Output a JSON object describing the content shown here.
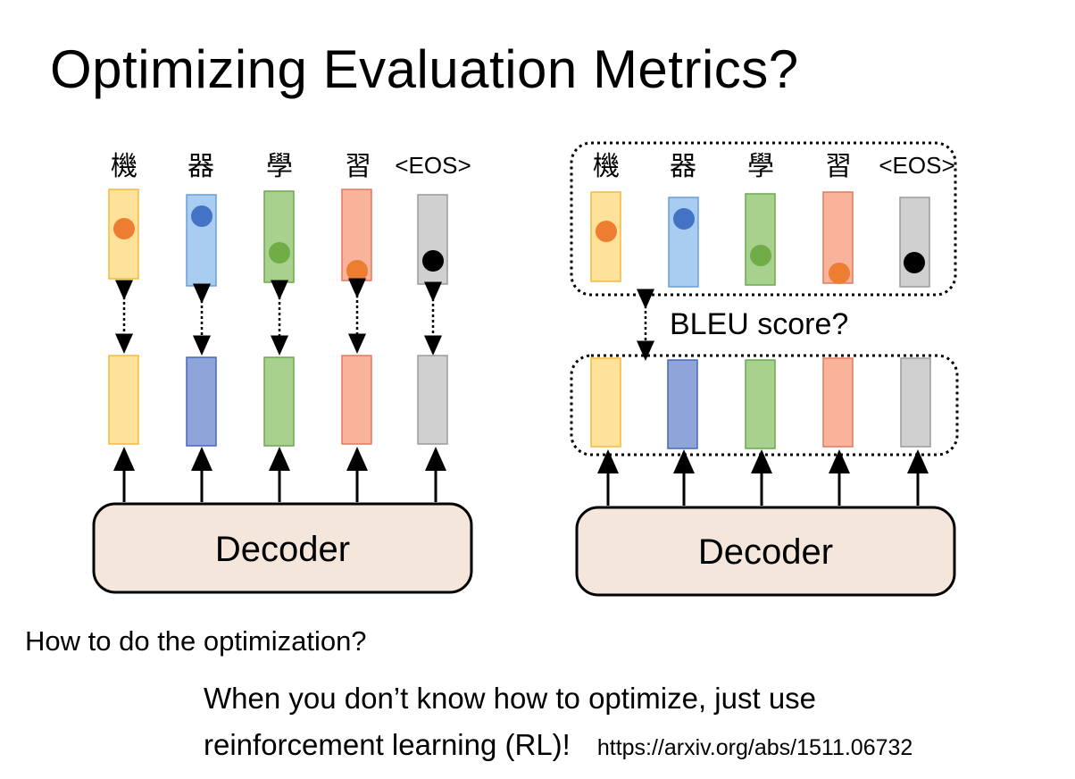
{
  "title": "Optimizing Evaluation Metrics?",
  "tokens": [
    "機",
    "器",
    "學",
    "習",
    "<EOS>"
  ],
  "colors": {
    "orange_light": "#ffe29a",
    "orange_border": "#f4b942",
    "blue_light": "#a9cdf0",
    "blue_border": "#6a9fd6",
    "green_light": "#a9d18e",
    "green_border": "#6aa84f",
    "red_light": "#f8b39a",
    "red_border": "#e07a5f",
    "gray_light": "#d0d0d0",
    "gray_border": "#9a9a9a",
    "blue_dark": "#8fa5da",
    "blue_dark_border": "#4a67b8",
    "dot_orange": "#ed7d31",
    "dot_blue": "#4472c4",
    "dot_green": "#70ad47",
    "dot_black": "#000000",
    "decoder_fill": "#f5e6dc"
  },
  "left_panel": {
    "decoder_label": "Decoder"
  },
  "right_panel": {
    "decoder_label": "Decoder",
    "bleu_label": "BLEU score?"
  },
  "question": "How to do the optimization?",
  "answer": {
    "line1": "When you don’t know how to optimize, just use",
    "line2": "reinforcement learning (RL)!",
    "url": "https://arxiv.org/abs/1511.06732"
  }
}
